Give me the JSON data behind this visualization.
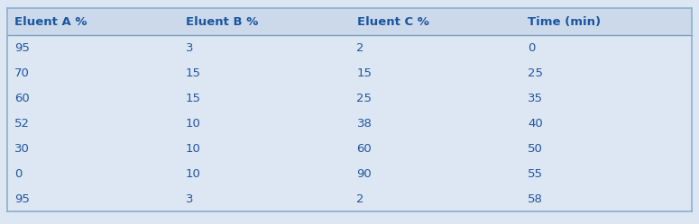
{
  "headers": [
    "Eluent A %",
    "Eluent B %",
    "Eluent C %",
    "Time (min)"
  ],
  "rows": [
    [
      "95",
      "3",
      "2",
      "0"
    ],
    [
      "70",
      "15",
      "15",
      "25"
    ],
    [
      "60",
      "15",
      "25",
      "35"
    ],
    [
      "52",
      "10",
      "38",
      "40"
    ],
    [
      "30",
      "10",
      "60",
      "50"
    ],
    [
      "0",
      "10",
      "90",
      "55"
    ],
    [
      "95",
      "3",
      "2",
      "58"
    ]
  ],
  "header_bg_color": "#ccd9ea",
  "row_bg_color": "#dce7f3",
  "header_text_color": "#1a56a0",
  "row_text_color": "#2255a0",
  "header_font_size": 9.5,
  "row_font_size": 9.5,
  "divider_color": "#7a9fc0",
  "outer_border_color": "#8ab0cc"
}
